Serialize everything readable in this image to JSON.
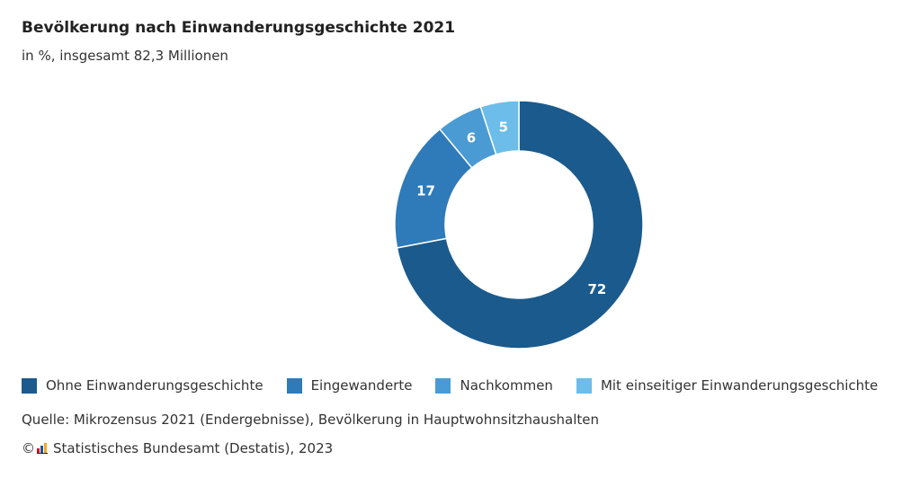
{
  "chart_data": {
    "type": "pie",
    "variant": "donut",
    "title": "Bevölkerung nach Einwanderungsgeschichte 2021",
    "subtitle": "in %, insgesamt 82,3 Millionen",
    "slices": [
      {
        "label": "Ohne Einwanderungsgeschichte",
        "value": 72,
        "color": "#1b5a8c"
      },
      {
        "label": "Eingewanderte",
        "value": 17,
        "color": "#2f7ab9"
      },
      {
        "label": "Nachkommen",
        "value": 6,
        "color": "#4a9bd4"
      },
      {
        "label": "Mit einseitiger Einwanderungsgeschichte",
        "value": 5,
        "color": "#6cbde9"
      }
    ],
    "legend_position": "bottom-left"
  },
  "footer": {
    "source": "Quelle: Mikrozensus 2021 (Endergebnisse), Bevölkerung in Hauptwohnsitzhaushalten",
    "copyright_symbol": "©",
    "copyright": "Statistisches Bundesamt (Destatis), 2023"
  }
}
